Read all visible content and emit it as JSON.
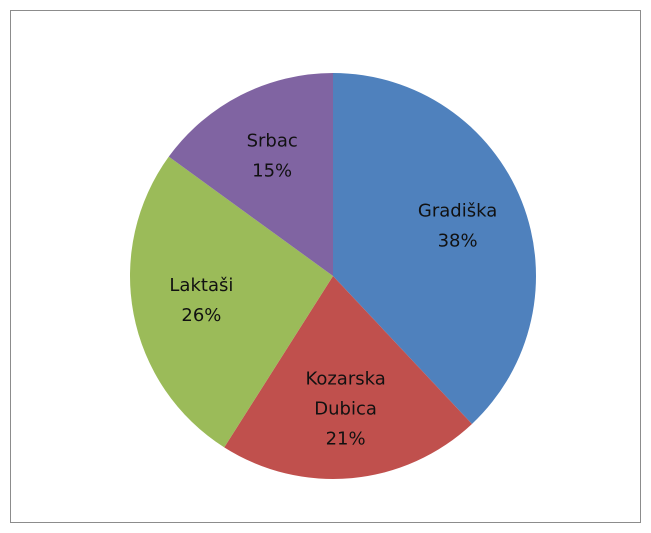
{
  "chart_data": {
    "type": "pie",
    "categories": [
      "Gradiška",
      "Kozarska Dubica",
      "Laktaši",
      "Srbac"
    ],
    "values": [
      38,
      21,
      26,
      15
    ],
    "value_labels": [
      "38%",
      "21%",
      "26%",
      "15%"
    ],
    "colors": [
      "#4f81bd",
      "#c0504d",
      "#9bbb59",
      "#8064a2"
    ],
    "legend": false
  }
}
